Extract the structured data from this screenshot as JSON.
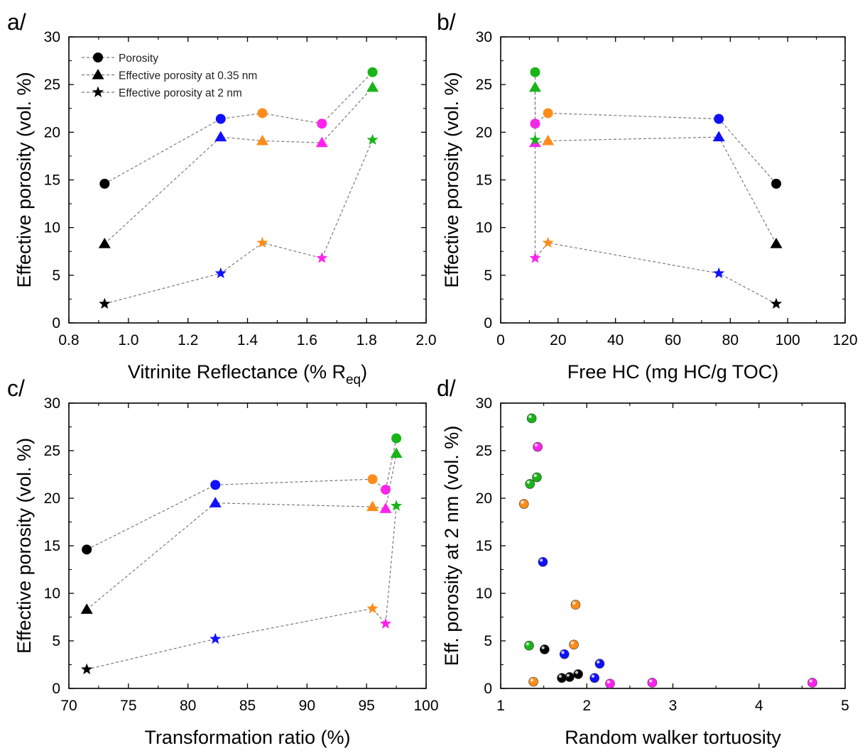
{
  "colors": {
    "black": "#000000",
    "blue": "#1010ff",
    "orange": "#ff8c1a",
    "magenta": "#ff22ee",
    "green": "#18b418",
    "dashed_line": "#7a7a7a"
  },
  "chart_data": [
    {
      "id": "a",
      "panel_label": "a/",
      "type": "line",
      "xlabel": "Vitrinite Reflectance (% R",
      "xlabel_sub": "eq",
      "xlabel_end": ")",
      "ylabel": "Effective porosity (vol. %)",
      "xlim": [
        0.8,
        2.0
      ],
      "ylim": [
        0,
        30
      ],
      "xticks": [
        "0.8",
        "1.0",
        "1.2",
        "1.4",
        "1.6",
        "1.8",
        "2.0"
      ],
      "yticks": [
        "0",
        "5",
        "10",
        "15",
        "20",
        "25",
        "30"
      ],
      "legend": [
        "Porosity",
        "Effective porosity at 0.35 nm",
        "Effective porosity at 2 nm"
      ],
      "legend_position": "top-left",
      "point_colors": [
        "black",
        "blue",
        "orange",
        "magenta",
        "green"
      ],
      "series": [
        {
          "marker": "circle",
          "name": "Porosity",
          "x": [
            0.92,
            1.31,
            1.45,
            1.65,
            1.82
          ],
          "y": [
            14.6,
            21.4,
            22.0,
            20.9,
            26.3
          ]
        },
        {
          "marker": "triangle",
          "name": "Effective porosity at 0.35 nm",
          "x": [
            0.92,
            1.31,
            1.45,
            1.65,
            1.82
          ],
          "y": [
            8.3,
            19.5,
            19.1,
            18.9,
            24.7
          ]
        },
        {
          "marker": "star",
          "name": "Effective porosity at 2 nm",
          "x": [
            0.92,
            1.31,
            1.45,
            1.65,
            1.82
          ],
          "y": [
            2.0,
            5.2,
            8.4,
            6.8,
            19.2
          ]
        }
      ]
    },
    {
      "id": "b",
      "panel_label": "b/",
      "type": "line",
      "xlabel": "Free HC (mg HC/g TOC)",
      "ylabel": "Effective porosity (vol. %)",
      "xlim": [
        0,
        120
      ],
      "ylim": [
        0,
        30
      ],
      "xticks": [
        "0",
        "20",
        "40",
        "60",
        "80",
        "100",
        "120"
      ],
      "yticks": [
        "0",
        "5",
        "10",
        "15",
        "20",
        "25",
        "30"
      ],
      "point_colors": [
        "black",
        "blue",
        "orange",
        "magenta",
        "green"
      ],
      "series": [
        {
          "marker": "circle",
          "x": [
            96,
            76,
            16.5,
            12,
            12
          ],
          "y": [
            14.6,
            21.4,
            22.0,
            20.9,
            26.3
          ]
        },
        {
          "marker": "triangle",
          "x": [
            96,
            76,
            16.5,
            12,
            12
          ],
          "y": [
            8.3,
            19.5,
            19.1,
            18.9,
            24.7
          ]
        },
        {
          "marker": "star",
          "x": [
            96,
            76,
            16.5,
            12,
            12
          ],
          "y": [
            2.0,
            5.2,
            8.4,
            6.8,
            19.2
          ]
        }
      ]
    },
    {
      "id": "c",
      "panel_label": "c/",
      "type": "line",
      "xlabel": "Transformation ratio (%)",
      "ylabel": "Effective porosity (vol. %)",
      "xlim": [
        70,
        100
      ],
      "ylim": [
        0,
        30
      ],
      "xticks": [
        "70",
        "75",
        "80",
        "85",
        "90",
        "95",
        "100"
      ],
      "yticks": [
        "0",
        "5",
        "10",
        "15",
        "20",
        "25",
        "30"
      ],
      "point_colors": [
        "black",
        "blue",
        "orange",
        "magenta",
        "green"
      ],
      "series": [
        {
          "marker": "circle",
          "x": [
            71.5,
            82.3,
            95.5,
            96.6,
            97.5
          ],
          "y": [
            14.6,
            21.4,
            22.0,
            20.9,
            26.3
          ]
        },
        {
          "marker": "triangle",
          "x": [
            71.5,
            82.3,
            95.5,
            96.6,
            97.5
          ],
          "y": [
            8.3,
            19.5,
            19.1,
            18.9,
            24.7
          ]
        },
        {
          "marker": "star",
          "x": [
            71.5,
            82.3,
            95.5,
            96.6,
            97.5
          ],
          "y": [
            2.0,
            5.2,
            8.4,
            6.8,
            19.2
          ]
        }
      ]
    },
    {
      "id": "d",
      "panel_label": "d/",
      "type": "scatter",
      "xlabel": "Random walker tortuosity",
      "ylabel": "Eff. porosity at 2 nm (vol. %)",
      "xlim": [
        1,
        5
      ],
      "ylim": [
        0,
        30
      ],
      "xticks": [
        "1",
        "2",
        "3",
        "4",
        "5"
      ],
      "yticks": [
        "0",
        "5",
        "10",
        "15",
        "20",
        "25",
        "30"
      ],
      "points": [
        {
          "color": "green",
          "x": 1.36,
          "y": 28.4
        },
        {
          "color": "magenta",
          "x": 1.43,
          "y": 25.4
        },
        {
          "color": "green",
          "x": 1.42,
          "y": 22.2
        },
        {
          "color": "green",
          "x": 1.34,
          "y": 21.5
        },
        {
          "color": "orange",
          "x": 1.27,
          "y": 19.4
        },
        {
          "color": "blue",
          "x": 1.49,
          "y": 13.3
        },
        {
          "color": "orange",
          "x": 1.87,
          "y": 8.8
        },
        {
          "color": "green",
          "x": 1.33,
          "y": 4.5
        },
        {
          "color": "black",
          "x": 1.51,
          "y": 4.1
        },
        {
          "color": "orange",
          "x": 1.85,
          "y": 4.6
        },
        {
          "color": "blue",
          "x": 1.74,
          "y": 3.6
        },
        {
          "color": "blue",
          "x": 2.15,
          "y": 2.6
        },
        {
          "color": "black",
          "x": 1.9,
          "y": 1.5
        },
        {
          "color": "black",
          "x": 1.8,
          "y": 1.2
        },
        {
          "color": "black",
          "x": 1.71,
          "y": 1.1
        },
        {
          "color": "blue",
          "x": 2.09,
          "y": 1.1
        },
        {
          "color": "orange",
          "x": 1.38,
          "y": 0.7
        },
        {
          "color": "magenta",
          "x": 2.27,
          "y": 0.5
        },
        {
          "color": "magenta",
          "x": 2.76,
          "y": 0.6
        },
        {
          "color": "magenta",
          "x": 4.62,
          "y": 0.6
        }
      ]
    }
  ]
}
